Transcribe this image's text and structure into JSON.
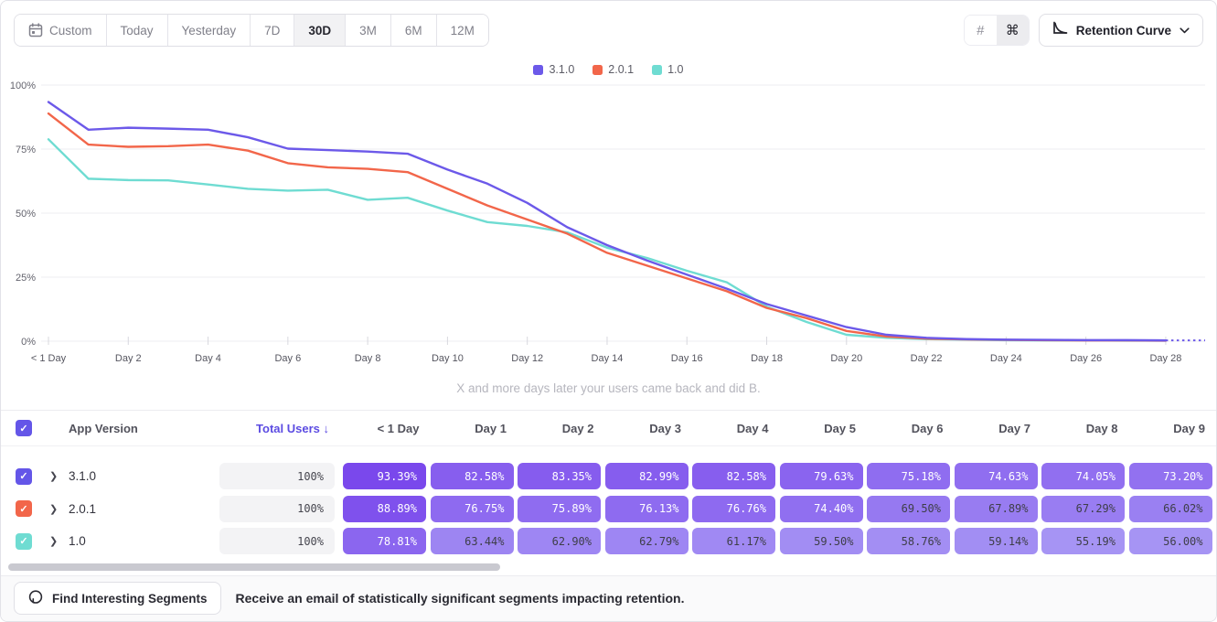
{
  "toolbar": {
    "date_ranges": [
      {
        "label": "Custom",
        "icon": "calendar",
        "active": false
      },
      {
        "label": "Today",
        "active": false
      },
      {
        "label": "Yesterday",
        "active": false
      },
      {
        "label": "7D",
        "active": false
      },
      {
        "label": "30D",
        "active": true
      },
      {
        "label": "3M",
        "active": false
      },
      {
        "label": "6M",
        "active": false
      },
      {
        "label": "12M",
        "active": false
      }
    ],
    "view_icons": [
      {
        "name": "hash-grid",
        "glyph": "#",
        "active": false
      },
      {
        "name": "command",
        "glyph": "⌘",
        "active": true
      }
    ],
    "chart_type": {
      "label": "Retention Curve",
      "icon": "retention-curve"
    }
  },
  "chart_data": {
    "type": "line",
    "title": "",
    "xlabel": "",
    "ylabel": "",
    "ylim": [
      0,
      100
    ],
    "grid": "horizontal",
    "legend_position": "top-center",
    "y_ticks": [
      {
        "label": "100%",
        "value": 100
      },
      {
        "label": "75%",
        "value": 75
      },
      {
        "label": "50%",
        "value": 50
      },
      {
        "label": "25%",
        "value": 25
      },
      {
        "label": "0%",
        "value": 0
      }
    ],
    "x_tick_labels": [
      "< 1 Day",
      "Day 2",
      "Day 4",
      "Day 6",
      "Day 8",
      "Day 10",
      "Day 12",
      "Day 14",
      "Day 16",
      "Day 18",
      "Day 20",
      "Day 22",
      "Day 24",
      "Day 26",
      "Day 28"
    ],
    "x_days": [
      0,
      1,
      2,
      3,
      4,
      5,
      6,
      7,
      8,
      9,
      10,
      11,
      12,
      13,
      14,
      15,
      16,
      17,
      18,
      19,
      20,
      21,
      22,
      23,
      24,
      25,
      26,
      27,
      28
    ],
    "series": [
      {
        "name": "3.1.0",
        "color": "#6C59E9",
        "values": [
          93.39,
          82.58,
          83.35,
          82.99,
          82.58,
          79.63,
          75.18,
          74.63,
          74.05,
          73.2,
          67,
          61.5,
          54,
          44.5,
          37.5,
          31.5,
          26,
          20.5,
          14.5,
          10,
          5.5,
          2.5,
          1.3,
          0.8,
          0.6,
          0.5,
          0.4,
          0.4,
          0.3
        ]
      },
      {
        "name": "2.0.1",
        "color": "#F2664A",
        "values": [
          88.89,
          76.75,
          75.89,
          76.13,
          76.76,
          74.4,
          69.5,
          67.89,
          67.29,
          66.02,
          59.5,
          53,
          47.5,
          42,
          34.5,
          29.5,
          24.5,
          19.5,
          13,
          9,
          4,
          1.8,
          1,
          0.7,
          0.5,
          0.4,
          0.3,
          0.3,
          0.2
        ]
      },
      {
        "name": "1.0",
        "color": "#6FDCD2",
        "values": [
          78.81,
          63.44,
          62.9,
          62.79,
          61.17,
          59.5,
          58.76,
          59.14,
          55.19,
          56,
          51,
          46.5,
          45,
          42.5,
          36.5,
          32.5,
          27.5,
          23,
          13.5,
          7.5,
          2.5,
          1.3,
          0.8,
          0.6,
          0.4,
          0.3,
          0.3,
          0.2,
          0.2
        ]
      }
    ],
    "dashed_extension": {
      "color": "#6C59E9",
      "value": 0.3
    },
    "caption": "X and more days later your users came back and did B."
  },
  "table": {
    "header": {
      "app_version": "App Version",
      "total_users": "Total Users",
      "sort_arrow": "↓",
      "day_columns": [
        "< 1 Day",
        "Day 1",
        "Day 2",
        "Day 3",
        "Day 4",
        "Day 5",
        "Day 6",
        "Day 7",
        "Day 8",
        "Day 9"
      ]
    },
    "pill_scale": {
      "low_value": 56,
      "high_value": 93.4,
      "low_color": "#A694F4",
      "high_color": "#7A48EC",
      "dark_text_threshold": 71,
      "light_text": "#FFFFFF",
      "dark_text": "#3E3E48"
    },
    "header_checkbox_color": "#6456E8",
    "rows": [
      {
        "version": "3.1.0",
        "checkbox_color": "#6456E8",
        "total": "100%",
        "values": [
          93.39,
          82.58,
          83.35,
          82.99,
          82.58,
          79.63,
          75.18,
          74.63,
          74.05,
          73.2
        ]
      },
      {
        "version": "2.0.1",
        "checkbox_color": "#F2664A",
        "total": "100%",
        "values": [
          88.89,
          76.75,
          75.89,
          76.13,
          76.76,
          74.4,
          69.5,
          67.89,
          67.29,
          66.02
        ]
      },
      {
        "version": "1.0",
        "checkbox_color": "#6FDCD2",
        "total": "100%",
        "values": [
          78.81,
          63.44,
          62.9,
          62.79,
          61.17,
          59.5,
          58.76,
          59.14,
          55.19,
          56.0
        ]
      }
    ]
  },
  "footer": {
    "button_label": "Find Interesting Segments",
    "message": "Receive an email of statistically significant segments impacting retention."
  }
}
